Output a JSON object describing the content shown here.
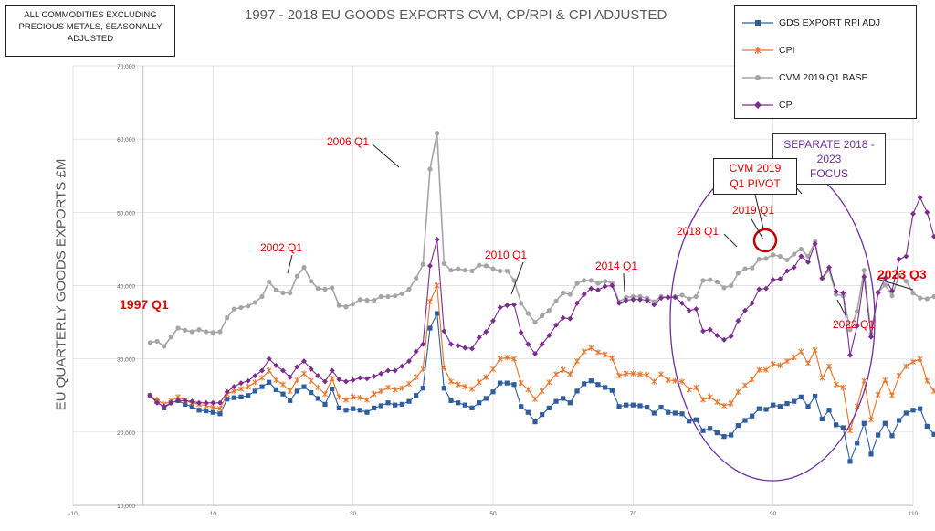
{
  "title": "1997 - 2018 EU GOODS EXPORTS CVM, CP/RPI & CPI ADJUSTED",
  "note_lines": [
    "ALL COMMODITIES EXCLUDING",
    "PRECIOUS METALS, SEASONALLY",
    "ADJUSTED"
  ],
  "focus_box_lines": [
    "SEPARATE 2018 -",
    "2023",
    "FOCUS"
  ],
  "pivot_box_lines": [
    "CVM 2019",
    "Q1 PIVOT"
  ],
  "annotations": {
    "a1997": "1997 Q1",
    "a2002": "2002 Q1",
    "a2006": "2006 Q1",
    "a2010": "2010 Q1",
    "a2014": "2014 Q1",
    "a2018": "2018 Q1",
    "a2019": "2019 Q1",
    "a2022": "2022 Q1",
    "a2023": "2023 Q3"
  },
  "colors": {
    "gds": "#2e5e9e",
    "cpi": "#e8742a",
    "cvm": "#a5a5a5",
    "cp": "#7b2d8e",
    "accent_red": "#e00000",
    "focus_purple": "#7030a0"
  },
  "chart_data": {
    "type": "line",
    "title": "1997 - 2018 EU GOODS EXPORTS CVM, CP/RPI & CPI ADJUSTED",
    "xlabel": "",
    "ylabel": "EU QUARTERLY GOODS EXPORTS £M",
    "xlim": [
      -10,
      110
    ],
    "ylim": [
      10000,
      70000
    ],
    "x_ticks": [
      -10,
      10,
      30,
      50,
      70,
      90,
      110
    ],
    "y_ticks": [
      10000,
      20000,
      30000,
      40000,
      50000,
      60000,
      70000
    ],
    "x_tick_labels": [
      "-10",
      "10",
      "30",
      "50",
      "70",
      "90",
      "110"
    ],
    "y_tick_labels": [
      "10,000",
      "20,000",
      "30,000",
      "40,000",
      "50,000",
      "60,000",
      "70,000"
    ],
    "legend_position": "top-right",
    "series": [
      {
        "name": "GDS EXPORT RPI ADJ",
        "key": "gds",
        "marker": "square",
        "values": [
          25000,
          24200,
          23300,
          24000,
          24300,
          23800,
          23500,
          23000,
          22900,
          22700,
          22500,
          24500,
          24700,
          24800,
          25000,
          25600,
          26200,
          26800,
          25800,
          25200,
          24300,
          25600,
          26200,
          25400,
          24600,
          23800,
          25900,
          23300,
          23000,
          23200,
          23000,
          22700,
          23300,
          23600,
          24000,
          23700,
          23800,
          24200,
          25000,
          26000,
          34200,
          36200,
          26000,
          24300,
          24000,
          23700,
          23300,
          24000,
          24600,
          25500,
          26700,
          26700,
          26500,
          23500,
          22700,
          21400,
          22400,
          23300,
          24200,
          24600,
          24000,
          25600,
          26600,
          27000,
          26500,
          26100,
          25700,
          23500,
          23700,
          23700,
          23600,
          23400,
          22600,
          23400,
          22700,
          22600,
          22500,
          21500,
          21700,
          20200,
          20500,
          19900,
          19400,
          19600,
          20900,
          21600,
          22200,
          23200,
          23100,
          23700,
          23500,
          23900,
          24200,
          24800,
          23500,
          24900,
          21800,
          23000,
          21000,
          20600,
          16000,
          18500,
          21200,
          17000,
          19600,
          21200,
          19500,
          21600,
          22600,
          23000,
          23200,
          20800,
          19700,
          18900,
          18900
        ]
      },
      {
        "name": "CPI",
        "key": "cpi",
        "marker": "star",
        "values": [
          25000,
          24400,
          23800,
          24300,
          24800,
          24300,
          24000,
          23800,
          23600,
          23400,
          23200,
          25200,
          25600,
          25900,
          26200,
          26800,
          27400,
          28400,
          27100,
          26500,
          25600,
          27100,
          28000,
          27000,
          26100,
          25200,
          27300,
          24800,
          24400,
          24800,
          24700,
          24400,
          25200,
          25600,
          26100,
          25800,
          26000,
          26600,
          27500,
          28600,
          37800,
          40000,
          28800,
          26900,
          26500,
          26200,
          25900,
          26800,
          27500,
          28600,
          30000,
          30200,
          30000,
          26700,
          25800,
          24500,
          25600,
          26800,
          27900,
          28500,
          27900,
          29700,
          31000,
          31500,
          30900,
          30600,
          30100,
          27700,
          28000,
          28000,
          27900,
          27800,
          26900,
          27900,
          27100,
          27000,
          26900,
          25800,
          26100,
          24400,
          24800,
          24100,
          23600,
          23900,
          25500,
          26400,
          27200,
          28500,
          28500,
          29300,
          29100,
          29700,
          30200,
          31000,
          29400,
          31200,
          27400,
          29000,
          26500,
          26100,
          20200,
          23500,
          27000,
          21700,
          25100,
          27100,
          25000,
          27700,
          29000,
          29600,
          30000,
          27000,
          25600,
          24600,
          24600
        ]
      },
      {
        "name": "CVM 2019 Q1 BASE",
        "key": "cvm",
        "marker": "circle",
        "values": [
          32200,
          32400,
          31700,
          33000,
          34200,
          33900,
          33700,
          34000,
          33700,
          33600,
          33700,
          35600,
          36800,
          37000,
          37200,
          37700,
          38500,
          40500,
          39400,
          39000,
          39000,
          41300,
          42500,
          40600,
          39600,
          39500,
          39700,
          37300,
          37100,
          37500,
          38100,
          38000,
          38000,
          38500,
          38500,
          38600,
          38900,
          39500,
          41000,
          42900,
          55900,
          60800,
          43000,
          42100,
          42300,
          42100,
          42000,
          42800,
          42700,
          42300,
          42000,
          42000,
          40700,
          37600,
          36200,
          35000,
          35900,
          36600,
          37900,
          39000,
          38800,
          40300,
          40700,
          40700,
          40300,
          40600,
          40400,
          37800,
          38400,
          38500,
          38500,
          38300,
          37800,
          38500,
          38400,
          38500,
          38700,
          38200,
          38500,
          40700,
          40800,
          40500,
          39700,
          40000,
          41700,
          42300,
          42400,
          43600,
          43700,
          44200,
          44000,
          43500,
          44300,
          45000,
          44000,
          46000,
          41000,
          42100,
          38800,
          38600,
          34000,
          36500,
          42100,
          33400,
          39100,
          40100,
          38600,
          41400,
          40600,
          39000,
          38300,
          38200,
          38500,
          39000,
          39300
        ]
      },
      {
        "name": "CP",
        "key": "cp",
        "marker": "diamond",
        "values": [
          25000,
          24000,
          23500,
          24000,
          24300,
          24300,
          24200,
          24000,
          24000,
          24000,
          24000,
          25500,
          26200,
          26700,
          27000,
          27700,
          28400,
          30000,
          29100,
          28400,
          27500,
          28900,
          29700,
          28600,
          27700,
          26900,
          28400,
          27200,
          26900,
          27100,
          27400,
          27300,
          27600,
          28000,
          28400,
          28400,
          29000,
          29700,
          31000,
          32000,
          42700,
          46300,
          33800,
          32000,
          31800,
          31500,
          31400,
          32900,
          33700,
          35200,
          37000,
          37300,
          37400,
          33600,
          32000,
          30700,
          32000,
          33200,
          34600,
          35600,
          35500,
          37600,
          38800,
          39600,
          39400,
          39900,
          40000,
          37600,
          38000,
          38100,
          38100,
          38000,
          37400,
          38300,
          38400,
          38400,
          37600,
          36600,
          36800,
          33800,
          34000,
          33200,
          32600,
          33100,
          35200,
          36600,
          37600,
          39500,
          39600,
          40800,
          40900,
          42000,
          42500,
          44000,
          43200,
          45700,
          41000,
          42500,
          39200,
          39000,
          30500,
          34500,
          41200,
          33000,
          39000,
          41000,
          39300,
          43600,
          44000,
          49800,
          52000,
          50000,
          46700,
          46000,
          46100
        ]
      }
    ],
    "annotations": [
      "1997 Q1",
      "2002 Q1",
      "2006 Q1",
      "2010 Q1",
      "2014 Q1",
      "2018 Q1",
      "2019 Q1",
      "2022 Q1",
      "2023 Q3",
      "CVM 2019 Q1 PIVOT",
      "SEPARATE 2018 - 2023 FOCUS"
    ]
  }
}
